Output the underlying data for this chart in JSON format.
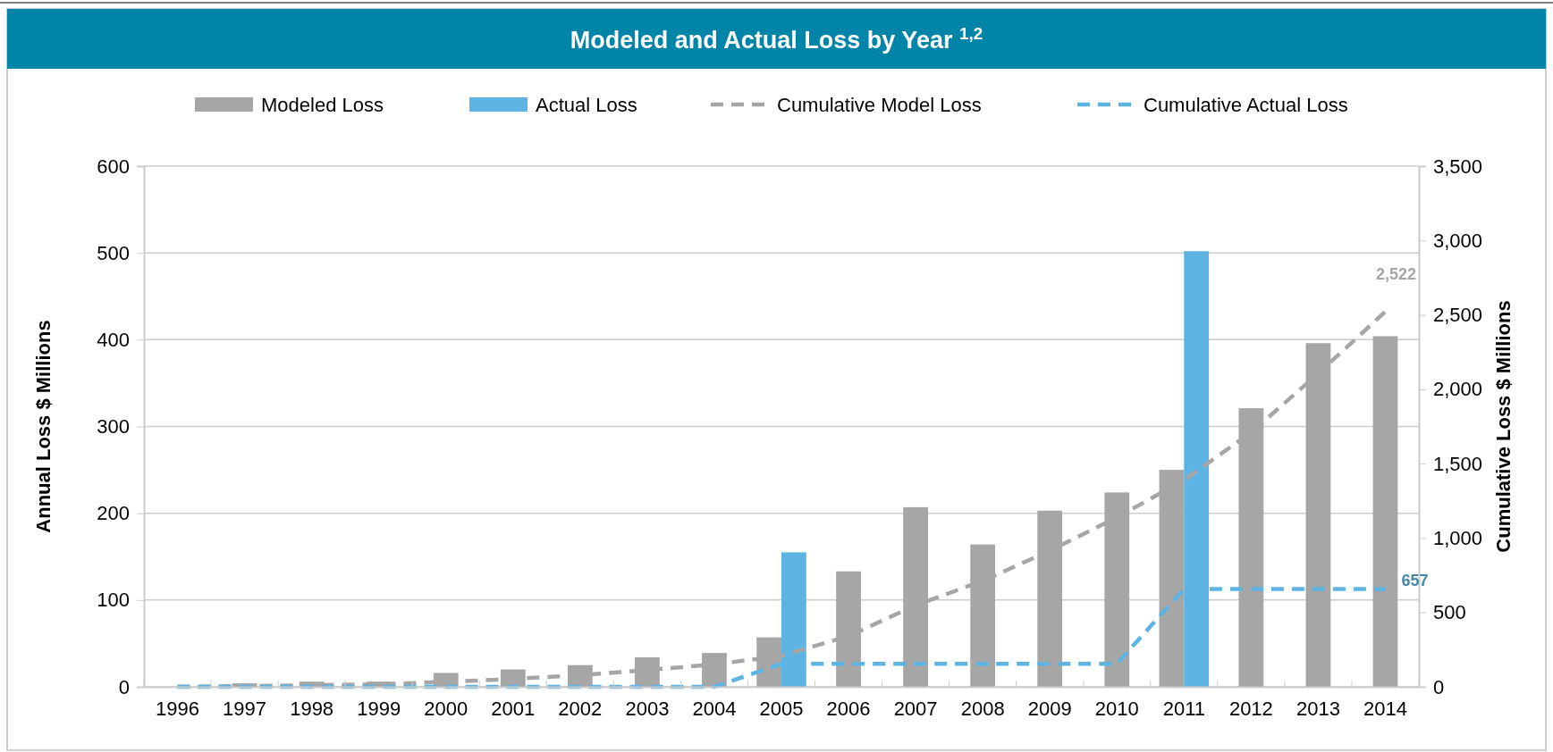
{
  "chart_data": {
    "type": "bar",
    "title": "Modeled and Actual Loss by Year $^{1,2}$",
    "ylabel": "Annual Loss $ Millions",
    "y2label": "Cumulative Loss $ Millions",
    "categories": [
      "1996",
      "1997",
      "1998",
      "1999",
      "2000",
      "2001",
      "2002",
      "2003",
      "2004",
      "2005",
      "2006",
      "2007",
      "2008",
      "2009",
      "2010",
      "2011",
      "2012",
      "2013",
      "2014"
    ],
    "series": [
      {
        "name": "Modeled Loss",
        "color": "#a6a6a6",
        "values": [
          null,
          4,
          6,
          6,
          16,
          20,
          25,
          34,
          39,
          57,
          133,
          207,
          164,
          203,
          224,
          250,
          321,
          396,
          404
        ]
      },
      {
        "name": "Actual Loss",
        "color": "#5db4e2",
        "values": [
          null,
          null,
          null,
          null,
          null,
          null,
          null,
          null,
          null,
          155,
          null,
          null,
          null,
          null,
          null,
          502,
          null,
          null,
          null
        ]
      },
      {
        "name": "Cumulative Model Loss",
        "type": "line",
        "axis": "y2",
        "color": "#a6a6a6",
        "line_style": "dashed",
        "values": [
          1,
          5,
          11,
          17,
          33,
          53,
          78,
          112,
          151,
          208,
          341,
          548,
          712,
          915,
          1139,
          1389,
          1710,
          2106,
          2522
        ],
        "value_labels": [
          null,
          null,
          null,
          null,
          null,
          null,
          null,
          null,
          null,
          null,
          null,
          null,
          null,
          null,
          null,
          null,
          null,
          null,
          "2,522"
        ]
      },
      {
        "name": "Cumulative Actual Loss",
        "type": "line",
        "axis": "y2",
        "color": "#5db4e2",
        "line_style": "dashed",
        "values": [
          0,
          0,
          0,
          0,
          0,
          0,
          0,
          0,
          0,
          155,
          155,
          155,
          155,
          155,
          155,
          657,
          657,
          657,
          657
        ],
        "value_labels": [
          null,
          null,
          null,
          null,
          null,
          null,
          null,
          null,
          null,
          null,
          null,
          null,
          null,
          null,
          null,
          null,
          null,
          null,
          "657"
        ]
      }
    ],
    "ylim": [
      0,
      600
    ],
    "yticks": [
      0,
      100,
      200,
      300,
      400,
      500,
      600
    ],
    "y2lim": [
      0,
      3500
    ],
    "y2ticks": [
      {
        "value": 0,
        "label": "0"
      },
      {
        "value": 500,
        "label": "500"
      },
      {
        "value": 1000,
        "label": "1,000"
      },
      {
        "value": 1500,
        "label": "1,500"
      },
      {
        "value": 2000,
        "label": "2,000"
      },
      {
        "value": 2500,
        "label": "2,500"
      },
      {
        "value": 3000,
        "label": "3,000"
      },
      {
        "value": 3500,
        "label": "3,500"
      }
    ],
    "grid": "y",
    "legend": "top"
  }
}
